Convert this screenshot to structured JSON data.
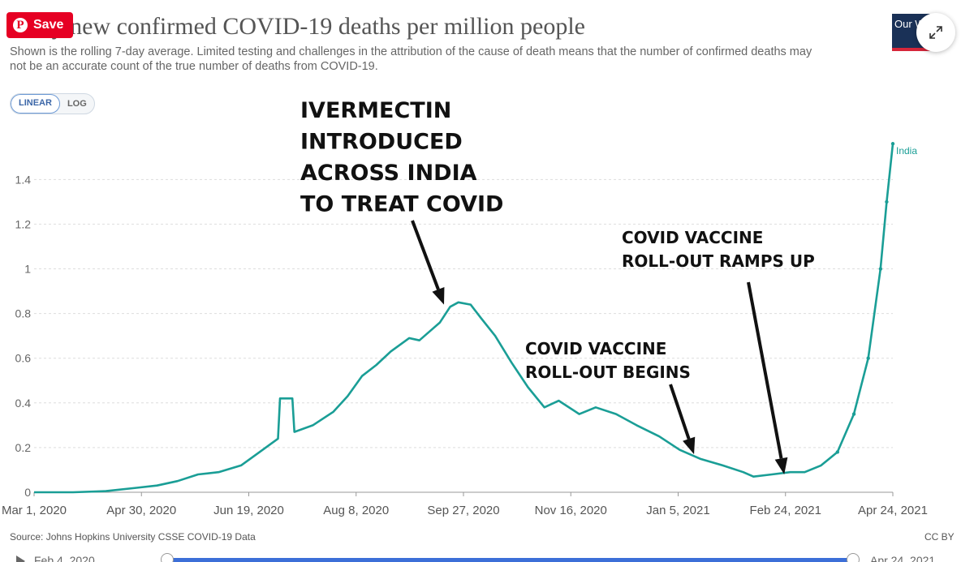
{
  "pin_button": {
    "label": "Save",
    "icon": "pinterest-icon"
  },
  "header": {
    "title": "Daily new confirmed COVID-19 deaths per million people",
    "subtitle": "Shown is the rolling 7-day average. Limited testing and challenges in the attribution of the cause of death means that the number of confirmed deaths may not be an accurate count of the true number of deaths from COVID-19.",
    "logo_text": "Our World in Data",
    "expand_icon": "expand-arrows-icon"
  },
  "scale_toggle": {
    "linear_label": "LINEAR",
    "log_label": "LOG",
    "selected": "LINEAR"
  },
  "chart_data": {
    "type": "line",
    "title": "Daily new confirmed COVID-19 deaths per million people",
    "xlim": [
      "2020-03-01",
      "2021-04-24"
    ],
    "ylim": [
      0,
      1.55
    ],
    "x_ticks": [
      "Mar 1, 2020",
      "Apr 30, 2020",
      "Jun 19, 2020",
      "Aug 8, 2020",
      "Sep 27, 2020",
      "Nov 16, 2020",
      "Jan 5, 2021",
      "Feb 24, 2021",
      "Apr 24, 2021"
    ],
    "y_ticks": [
      "0",
      "0.2",
      "0.4",
      "0.6",
      "0.8",
      "1",
      "1.2",
      "1.4"
    ],
    "grid": true,
    "series_color": "#1a9e96",
    "series": [
      {
        "name": "India",
        "points": [
          [
            "2020-03-01",
            0
          ],
          [
            "2020-03-20",
            0
          ],
          [
            "2020-04-05",
            0.005
          ],
          [
            "2020-04-20",
            0.02
          ],
          [
            "2020-04-30",
            0.03
          ],
          [
            "2020-05-10",
            0.05
          ],
          [
            "2020-05-20",
            0.08
          ],
          [
            "2020-05-30",
            0.09
          ],
          [
            "2020-06-10",
            0.12
          ],
          [
            "2020-06-19",
            0.18
          ],
          [
            "2020-06-25",
            0.22
          ],
          [
            "2020-06-28",
            0.24
          ],
          [
            "2020-06-29",
            0.42
          ],
          [
            "2020-07-05",
            0.42
          ],
          [
            "2020-07-06",
            0.27
          ],
          [
            "2020-07-15",
            0.3
          ],
          [
            "2020-07-25",
            0.36
          ],
          [
            "2020-08-01",
            0.43
          ],
          [
            "2020-08-08",
            0.52
          ],
          [
            "2020-08-15",
            0.57
          ],
          [
            "2020-08-22",
            0.63
          ],
          [
            "2020-08-31",
            0.69
          ],
          [
            "2020-09-05",
            0.68
          ],
          [
            "2020-09-10",
            0.72
          ],
          [
            "2020-09-15",
            0.76
          ],
          [
            "2020-09-20",
            0.83
          ],
          [
            "2020-09-24",
            0.85
          ],
          [
            "2020-09-30",
            0.84
          ],
          [
            "2020-10-05",
            0.78
          ],
          [
            "2020-10-12",
            0.7
          ],
          [
            "2020-10-20",
            0.58
          ],
          [
            "2020-10-28",
            0.47
          ],
          [
            "2020-11-05",
            0.38
          ],
          [
            "2020-11-12",
            0.41
          ],
          [
            "2020-11-22",
            0.35
          ],
          [
            "2020-11-30",
            0.38
          ],
          [
            "2020-12-10",
            0.35
          ],
          [
            "2020-12-20",
            0.3
          ],
          [
            "2020-12-31",
            0.25
          ],
          [
            "2021-01-10",
            0.19
          ],
          [
            "2021-01-20",
            0.15
          ],
          [
            "2021-01-31",
            0.12
          ],
          [
            "2021-02-10",
            0.09
          ],
          [
            "2021-02-15",
            0.07
          ],
          [
            "2021-02-24",
            0.08
          ],
          [
            "2021-03-05",
            0.09
          ],
          [
            "2021-03-12",
            0.09
          ],
          [
            "2021-03-20",
            0.12
          ],
          [
            "2021-03-28",
            0.18
          ],
          [
            "2021-04-05",
            0.35
          ],
          [
            "2021-04-12",
            0.6
          ],
          [
            "2021-04-18",
            1.0
          ],
          [
            "2021-04-21",
            1.3
          ],
          [
            "2021-04-24",
            1.56
          ]
        ]
      }
    ],
    "annotations": [
      {
        "id": "ivermectin",
        "lines": [
          "IVERMECTIN",
          "INTRODUCED",
          "ACROSS INDIA",
          "TO TREAT COVID"
        ],
        "points_to": [
          "2020-09-17",
          0.84
        ]
      },
      {
        "id": "vaccine-begins",
        "lines": [
          "COVID VACCINE",
          "ROLL-OUT BEGINS"
        ],
        "points_to": [
          "2021-01-17",
          0.17
        ]
      },
      {
        "id": "vaccine-ramps",
        "lines": [
          "COVID VACCINE",
          "ROLL-OUT RAMPS UP"
        ],
        "points_to": [
          "2021-03-02",
          0.08
        ]
      }
    ]
  },
  "footer": {
    "source": "Source: Johns Hopkins University CSSE COVID-19 Data",
    "license": "CC BY"
  },
  "timeline": {
    "start_label": "Feb 4, 2020",
    "end_label": "Apr 24, 2021",
    "start_handle": "2020-03-01",
    "end_handle": "2021-04-24"
  }
}
